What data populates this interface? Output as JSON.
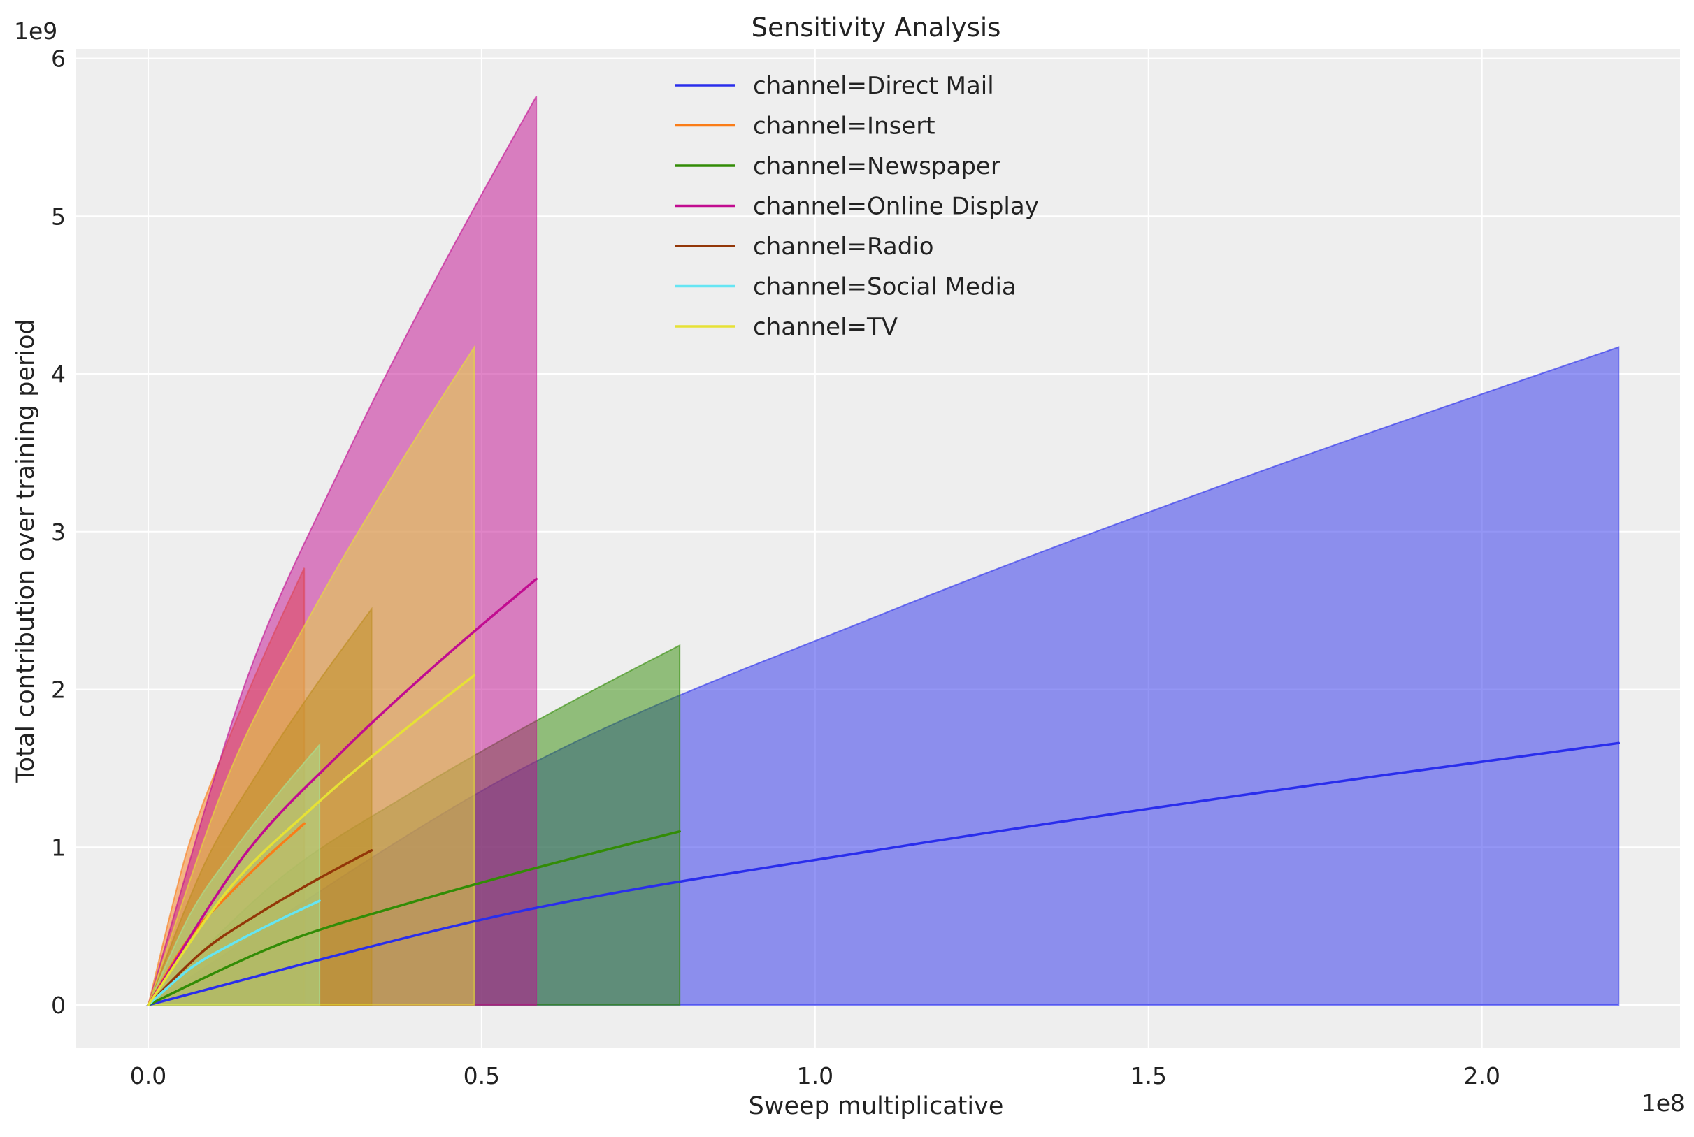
{
  "chart_data": {
    "type": "area",
    "title": "Sensitivity Analysis",
    "xlabel": "Sweep multiplicative",
    "ylabel": "Total contribution over training period",
    "x_offset_label": "1e8",
    "y_offset_label": "1e9",
    "xlim": [
      -10900000,
      229700000
    ],
    "ylim": [
      -270000000,
      6060000000
    ],
    "x_ticks": [
      0,
      50000000,
      100000000,
      150000000,
      200000000
    ],
    "x_tick_labels": [
      "0.0",
      "0.5",
      "1.0",
      "1.5",
      "2.0"
    ],
    "y_ticks": [
      0,
      1000000000.0,
      2000000000.0,
      3000000000.0,
      4000000000.0,
      5000000000.0,
      6000000000.0
    ],
    "y_tick_labels": [
      "0",
      "1",
      "2",
      "3",
      "4",
      "5",
      "6"
    ],
    "grid": true,
    "background": "#eeeeee",
    "legend_placement": "top-center",
    "series": [
      {
        "name": "channel=Direct Mail",
        "color": "#2a2eec",
        "x": [
          0,
          55100000.0,
          110300000.0,
          165400000.0,
          220500000.0
        ],
        "mean": [
          0,
          588000000.0,
          988000000.0,
          1338000000.0,
          1660000000.0
        ],
        "lower": [
          0,
          0,
          0,
          0,
          0
        ],
        "upper": [
          0,
          1476000000.0,
          2481000000.0,
          3361000000.0,
          4170000000.0
        ]
      },
      {
        "name": "channel=Insert",
        "color": "#fa7c17",
        "x": [
          0,
          5850000.0,
          11700000.0,
          17550000.0,
          23400000.0
        ],
        "mean": [
          0,
          407000000.0,
          684000000.0,
          927000000.0,
          1150000000.0
        ],
        "lower": [
          0,
          0,
          0,
          0,
          0
        ],
        "upper": [
          0,
          981000000.0,
          1648000000.0,
          2233000000.0,
          2770000000.0
        ]
      },
      {
        "name": "channel=Newspaper",
        "color": "#328c06",
        "x": [
          0,
          19900000.0,
          39900000.0,
          59800000.0,
          79700000.0
        ],
        "mean": [
          0,
          389000000.0,
          655000000.0,
          887000000.0,
          1100000000.0
        ],
        "lower": [
          0,
          0,
          0,
          0,
          0
        ],
        "upper": [
          0,
          807000000.0,
          1357000000.0,
          1838000000.0,
          2280000000.0
        ]
      },
      {
        "name": "channel=Online Display",
        "color": "#c10c90",
        "x": [
          0,
          14550000.0,
          29100000.0,
          43650000.0,
          58200000.0
        ],
        "mean": [
          0,
          956000000.0,
          1607000000.0,
          2176000000.0,
          2700000000.0
        ],
        "lower": [
          0,
          0,
          0,
          0,
          0
        ],
        "upper": [
          0,
          2039000000.0,
          3427000000.0,
          4643000000.0,
          5760000000.0
        ]
      },
      {
        "name": "channel=Radio",
        "color": "#933708",
        "x": [
          0,
          8400000.0,
          16750000.0,
          25100000.0,
          33500000.0
        ],
        "mean": [
          0,
          347000000.0,
          583000000.0,
          790000000.0,
          980000000.0
        ],
        "lower": [
          0,
          0,
          0,
          0,
          0
        ],
        "upper": [
          0,
          889000000.0,
          1493000000.0,
          2023000000.0,
          2510000000.0
        ]
      },
      {
        "name": "channel=Social Media",
        "color": "#65e5f3",
        "x": [
          0,
          6400000.0,
          12850000.0,
          19300000.0,
          25700000.0
        ],
        "mean": [
          0,
          234000000.0,
          393000000.0,
          532000000.0,
          660000000.0
        ],
        "lower": [
          0,
          0,
          0,
          0,
          0
        ],
        "upper": [
          0,
          584000000.0,
          982000000.0,
          1330000000.0,
          1650000000.0
        ]
      },
      {
        "name": "channel=TV",
        "color": "#e6e135",
        "x": [
          0,
          12200000.0,
          24450000.0,
          36700000.0,
          48900000.0
        ],
        "mean": [
          0,
          740000000.0,
          1244000000.0,
          1685000000.0,
          2090000000.0
        ],
        "lower": [
          0,
          0,
          0,
          0,
          0
        ],
        "upper": [
          0,
          1476000000.0,
          2481000000.0,
          3361000000.0,
          4170000000.0
        ]
      }
    ]
  }
}
